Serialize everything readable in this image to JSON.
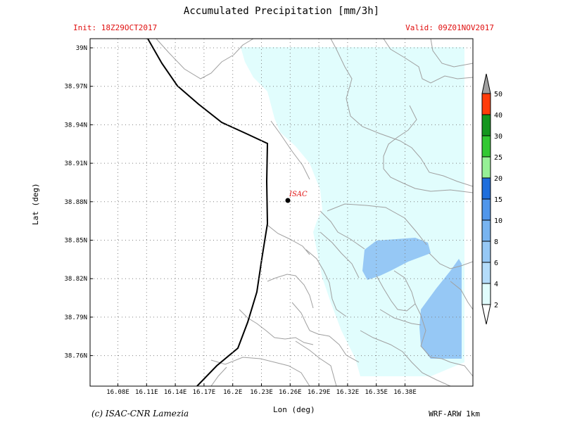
{
  "header": {
    "title": "Accumulated Precipitation [mm/3h]",
    "init": "Init: 18Z29OCT2017",
    "valid": "Valid: 09Z01NOV2017"
  },
  "footer": {
    "credit": "(c) ISAC-CNR Lamezia",
    "model": "WRF-ARW 1km"
  },
  "axes": {
    "xlabel": "Lon (deg)",
    "ylabel": "Lat (deg)",
    "x_ticks": [
      "16.08E",
      "16.11E",
      "16.14E",
      "16.17E",
      "16.2E",
      "16.23E",
      "16.26E",
      "16.29E",
      "16.32E",
      "16.35E",
      "16.38E"
    ],
    "y_ticks": [
      "39N",
      "38.97N",
      "38.94N",
      "38.91N",
      "38.88N",
      "38.85N",
      "38.82N",
      "38.79N",
      "38.76N"
    ]
  },
  "station": {
    "label": "ISAC"
  },
  "colorbar": {
    "levels": [
      "2",
      "4",
      "6",
      "8",
      "10",
      "15",
      "20",
      "25",
      "30",
      "40",
      "50"
    ],
    "colors": {
      "below": "#ffffff",
      "c2_4": "#e1fdfd",
      "c4_6": "#b4dcfa",
      "c6_8": "#96c8f5",
      "c8_10": "#78b4f0",
      "c10_15": "#5096eb",
      "c15_20": "#1e6edc",
      "c20_25": "#96f096",
      "c25_30": "#32c832",
      "c30_40": "#14961e",
      "c40_50": "#ff3c0a",
      "above": "#a0a0a0"
    }
  },
  "colors": {
    "text_red": "#e01010",
    "coast": "#000000",
    "borders": "#a0a0a0",
    "grid": "#808080",
    "light_precip": "#e1fdfd",
    "moderate_precip": "#96c8f5"
  }
}
